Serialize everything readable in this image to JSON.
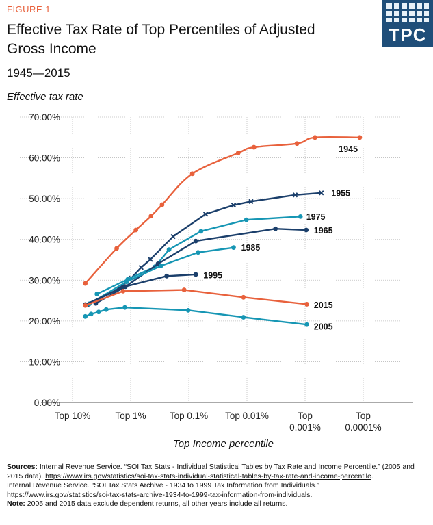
{
  "header": {
    "figure_label": "FIGURE 1",
    "title": "Effective Tax Rate of Top Percentiles of Adjusted Gross Income",
    "subtitle": "1945—2015",
    "logo_text": "TPC"
  },
  "chart_data": {
    "type": "line",
    "title": "Effective Tax Rate of Top Percentiles of Adjusted Gross Income",
    "ylabel": "Effective tax rate",
    "xlabel": "Top Income percentile",
    "ylim": [
      0,
      70
    ],
    "yticks": [
      0,
      10,
      20,
      30,
      40,
      50,
      60,
      70
    ],
    "ytick_labels": [
      "0.00%",
      "10.00%",
      "20.00%",
      "30.00%",
      "40.00%",
      "50.00%",
      "60.00%",
      "70.00%"
    ],
    "x_scale": "log-percentile (0 = Top 10%, 5 = Top 0.0001%)",
    "xlim": [
      0,
      5
    ],
    "xticks": [
      0,
      1,
      2,
      3,
      4,
      5
    ],
    "xtick_labels": [
      [
        "Top 10%"
      ],
      [
        "Top 1%"
      ],
      [
        "Top 0.1%"
      ],
      [
        "Top 0.01%"
      ],
      [
        "Top",
        "0.001%"
      ],
      [
        "Top",
        "0.0001%"
      ]
    ],
    "series": [
      {
        "name": "1945",
        "color": "#e8613c",
        "curve": true,
        "marker": "circle",
        "x": [
          0.22,
          0.76,
          1.09,
          1.35,
          1.54,
          2.06,
          2.85,
          3.12,
          3.86,
          4.17,
          4.94
        ],
        "y": [
          29.2,
          37.8,
          42.3,
          45.7,
          48.5,
          56.1,
          61.2,
          62.6,
          63.5,
          65.0,
          65.0
        ]
      },
      {
        "name": "1955",
        "color": "#1b3f6b",
        "curve": false,
        "marker": "x",
        "x": [
          0.25,
          0.75,
          1.01,
          1.18,
          1.34,
          1.73,
          2.29,
          2.77,
          3.07,
          3.83,
          4.28
        ],
        "y": [
          24.0,
          27.5,
          30.5,
          33.1,
          35.1,
          40.7,
          46.2,
          48.4,
          49.3,
          50.9,
          51.4
        ]
      },
      {
        "name": "1975",
        "color": "#1696b4",
        "curve": false,
        "marker": "circle",
        "x": [
          0.42,
          0.95,
          1.42,
          1.66,
          2.21,
          2.99,
          3.92
        ],
        "y": [
          26.6,
          30.2,
          33.3,
          37.5,
          42.0,
          44.8,
          45.6
        ]
      },
      {
        "name": "1965",
        "color": "#1b3f6b",
        "curve": false,
        "marker": "circle",
        "x": [
          0.4,
          0.91,
          1.47,
          2.12,
          3.49,
          4.02
        ],
        "y": [
          24.3,
          28.4,
          34.0,
          39.6,
          42.6,
          42.3
        ]
      },
      {
        "name": "1985",
        "color": "#1696b4",
        "curve": false,
        "marker": "circle",
        "x": [
          0.29,
          0.93,
          1.52,
          2.16,
          2.77
        ],
        "y": [
          24.2,
          29.6,
          33.5,
          36.8,
          38.0
        ]
      },
      {
        "name": "1995",
        "color": "#1b3f6b",
        "curve": false,
        "marker": "circle",
        "x": [
          0.22,
          0.87,
          1.62,
          2.12
        ],
        "y": [
          24.0,
          28.3,
          31.0,
          31.4
        ]
      },
      {
        "name": "2015",
        "color": "#e8613c",
        "curve": false,
        "marker": "circle",
        "x": [
          0.22,
          0.87,
          1.92,
          2.94,
          4.03
        ],
        "y": [
          23.8,
          27.3,
          27.6,
          25.8,
          24.1
        ]
      },
      {
        "name": "2005",
        "color": "#1696b4",
        "curve": false,
        "marker": "circle",
        "x": [
          0.22,
          0.32,
          0.45,
          0.58,
          0.9,
          1.99,
          2.94,
          4.03
        ],
        "y": [
          21.1,
          21.7,
          22.2,
          22.8,
          23.3,
          22.6,
          20.9,
          19.1
        ]
      }
    ],
    "series_labels": [
      {
        "name": "1945",
        "x": 4.58,
        "y": 62.2
      },
      {
        "name": "1955",
        "x": 4.45,
        "y": 51.4
      },
      {
        "name": "1975",
        "x": 4.02,
        "y": 45.6
      },
      {
        "name": "1965",
        "x": 4.15,
        "y": 42.2
      },
      {
        "name": "1985",
        "x": 2.9,
        "y": 38.0
      },
      {
        "name": "1995",
        "x": 2.25,
        "y": 31.2
      },
      {
        "name": "2015",
        "x": 4.15,
        "y": 23.9
      },
      {
        "name": "2005",
        "x": 4.15,
        "y": 18.6
      }
    ]
  },
  "notes": {
    "sources_label": "Sources:",
    "source1": "Internal Revenue Service. “SOI Tax Stats - Individual Statistical Tables by Tax Rate and Income Percentile.”  (2005 and 2015 data).",
    "source1_link": "https://www.irs.gov/statistics/soi-tax-stats-individual-statistical-tables-by-tax-rate-and-income-percentile",
    "source2": "Internal Revenue Service. “SOI Tax Stats Archive - 1934 to 1999 Tax Information from Individuals.”",
    "source2_link": "https://www.irs.gov/statistics/soi-tax-stats-archive-1934-to-1999-tax-information-from-individuals",
    "note_label": "Note:",
    "note": "2005 and 2015 data exclude dependent returns, all other years include all returns."
  }
}
